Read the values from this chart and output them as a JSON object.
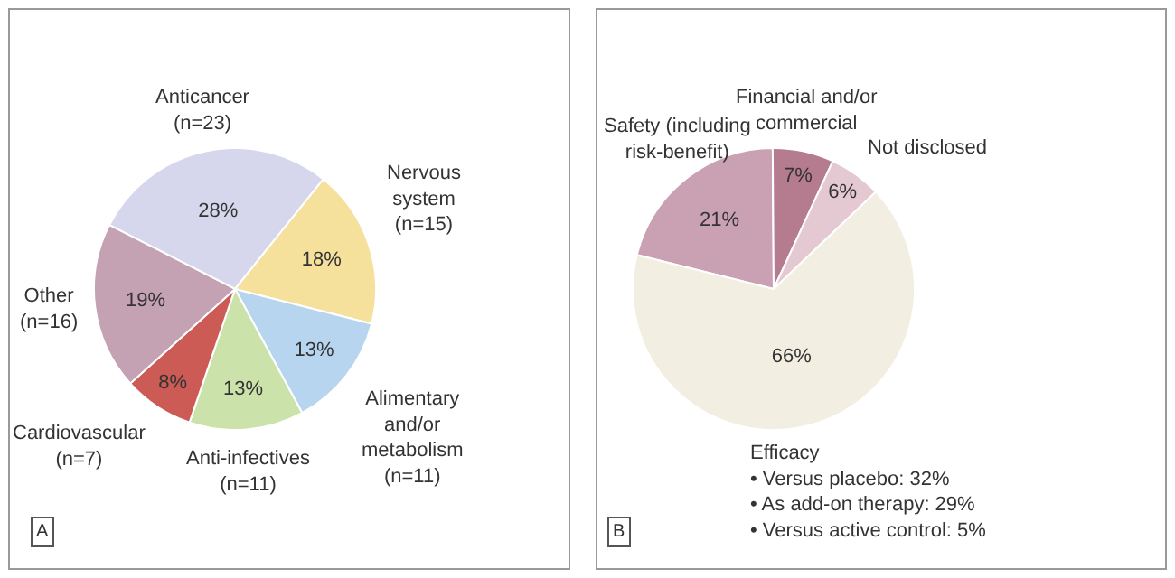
{
  "chart_data": [
    {
      "type": "pie",
      "categories": [
        "Anticancer\n(n=23)",
        "Nervous\nsystem\n(n=15)",
        "Alimentary\nand/or\nmetabolism\n(n=11)",
        "Anti-infectives\n(n=11)",
        "Cardiovascular\n(n=7)",
        "Other\n(n=16)"
      ],
      "values": [
        28,
        18,
        13,
        13,
        8,
        19
      ],
      "value_labels": [
        "28%",
        "18%",
        "13%",
        "13%",
        "8%",
        "19%"
      ],
      "colors": [
        "#d6d6ec",
        "#f5e09c",
        "#b8d5f0",
        "#cbe2ab",
        "#cc5b55",
        "#c5a2b3"
      ],
      "annotations": [
        "A"
      ]
    },
    {
      "type": "pie",
      "categories": [
        "Safety (including\nrisk-benefit)",
        "Financial and/or\ncommercial",
        "Not disclosed",
        "Efficacy\n• Versus placebo: 32%\n• As add-on therapy: 29%\n• Versus active control: 5%"
      ],
      "values": [
        21,
        7,
        6,
        66
      ],
      "value_labels": [
        "21%",
        "7%",
        "6%",
        "66%"
      ],
      "colors": [
        "#c9a1b3",
        "#b57b8f",
        "#e4c8d2",
        "#f2eee2"
      ],
      "annotations": [
        "B"
      ]
    }
  ]
}
